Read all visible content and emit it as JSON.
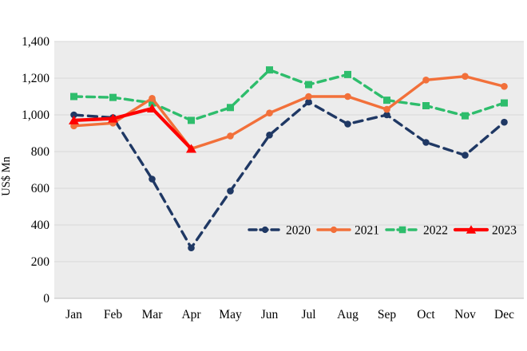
{
  "chart_data": {
    "type": "line",
    "title": "",
    "ylabel": "US$ Mn",
    "xlabel": "",
    "categories": [
      "Jan",
      "Feb",
      "Mar",
      "Apr",
      "May",
      "Jun",
      "Jul",
      "Aug",
      "Sep",
      "Oct",
      "Nov",
      "Dec"
    ],
    "series": [
      {
        "name": "2020",
        "color": "#1F3864",
        "style": "dashed",
        "marker": "circle",
        "values": [
          1000,
          985,
          650,
          275,
          585,
          890,
          1070,
          950,
          1000,
          850,
          780,
          960
        ]
      },
      {
        "name": "2021",
        "color": "#F2703A",
        "style": "solid",
        "marker": "circle",
        "values": [
          940,
          955,
          1090,
          815,
          885,
          1010,
          1100,
          1100,
          1030,
          1190,
          1210,
          1155
        ]
      },
      {
        "name": "2022",
        "color": "#2EBD6C",
        "style": "dashed",
        "marker": "square",
        "values": [
          1100,
          1095,
          1065,
          970,
          1040,
          1245,
          1165,
          1220,
          1080,
          1050,
          995,
          1065
        ]
      },
      {
        "name": "2023",
        "color": "#FE0000",
        "style": "solid",
        "marker": "triangle",
        "values": [
          970,
          980,
          1035,
          815,
          null,
          null,
          null,
          null,
          null,
          null,
          null,
          null
        ]
      }
    ],
    "y_axis": {
      "min": 0,
      "max": 1400,
      "step": 200,
      "tick_labels": [
        "0",
        "200",
        "400",
        "600",
        "800",
        "1,000",
        "1,200",
        "1,400"
      ]
    },
    "legend": {
      "position": "inside-lower-right",
      "entries": [
        "2020",
        "2021",
        "2022",
        "2023"
      ]
    },
    "grid": "horizontal",
    "plot_bg_color": "#ECECEC",
    "grid_color": "#D9D9D9",
    "axis_line_color": "#BFBFBF",
    "text_color": "#000000"
  }
}
